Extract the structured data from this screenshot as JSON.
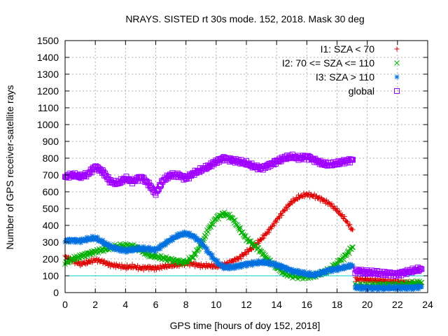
{
  "chart_data": {
    "type": "scatter",
    "title": "NRAYS. SISTED rt 30s mode. 152, 2018. Mask 30 deg",
    "xlabel": "GPS time [hours of doy 152, 2018]",
    "ylabel": "Number of GPS receiver-satellite rays",
    "xlim": [
      0,
      24
    ],
    "ylim": [
      0,
      1500
    ],
    "x_ticks": [
      "0",
      "2",
      "4",
      "6",
      "8",
      "10",
      "12",
      "14",
      "16",
      "18",
      "20",
      "22",
      "24"
    ],
    "y_ticks": [
      "0",
      "100",
      "200",
      "300",
      "400",
      "500",
      "600",
      "700",
      "800",
      "900",
      "1000",
      "1100",
      "1200",
      "1300",
      "1400",
      "1500"
    ],
    "grid": true,
    "legend_position": "top-right",
    "reference_line": {
      "y": 100,
      "color": "#00cccc"
    },
    "series": [
      {
        "name": "I1: SZA < 70",
        "marker": "+",
        "color": "#e00000",
        "x": [
          0,
          0.5,
          1,
          1.5,
          2,
          2.5,
          3,
          3.5,
          4,
          4.5,
          5,
          5.5,
          6,
          6.5,
          7,
          7.5,
          8,
          8.5,
          9,
          9.5,
          10,
          10.5,
          11,
          11.5,
          12,
          12.5,
          13,
          13.5,
          14,
          14.5,
          15,
          15.5,
          16,
          16.5,
          17,
          17.5,
          18,
          18.5,
          19,
          19.2,
          20,
          21,
          22,
          23,
          23.6
        ],
        "values": [
          215,
          190,
          170,
          180,
          195,
          185,
          165,
          160,
          150,
          155,
          145,
          150,
          145,
          155,
          160,
          165,
          175,
          170,
          160,
          160,
          155,
          165,
          185,
          205,
          240,
          275,
          320,
          370,
          430,
          490,
          540,
          570,
          585,
          575,
          555,
          530,
          490,
          440,
          375,
          80,
          75,
          70,
          65,
          55,
          50
        ]
      },
      {
        "name": "I2: 70 <= SZA <= 110",
        "marker": "x",
        "color": "#00b000",
        "x": [
          0,
          0.5,
          1,
          1.5,
          2,
          2.5,
          3,
          3.5,
          4,
          4.5,
          5,
          5.5,
          6,
          6.5,
          7,
          7.5,
          8,
          8.5,
          9,
          9.5,
          10,
          10.5,
          11,
          11.5,
          12,
          12.5,
          13,
          13.5,
          14,
          14.5,
          15,
          15.5,
          16,
          16.5,
          17,
          17.5,
          18,
          18.5,
          19,
          19.2,
          20,
          21,
          22,
          23,
          23.6
        ],
        "values": [
          175,
          200,
          215,
          230,
          245,
          255,
          265,
          275,
          280,
          275,
          255,
          225,
          215,
          205,
          195,
          185,
          180,
          215,
          285,
          380,
          445,
          470,
          450,
          385,
          320,
          285,
          240,
          190,
          150,
          115,
          100,
          95,
          95,
          100,
          115,
          135,
          175,
          215,
          270,
          40,
          40,
          45,
          45,
          55,
          60
        ]
      },
      {
        "name": "I3: SZA > 110",
        "marker": "*",
        "color": "#0070e0",
        "x": [
          0,
          0.5,
          1,
          1.5,
          2,
          2.5,
          3,
          3.5,
          4,
          4.5,
          5,
          5.5,
          6,
          6.5,
          7,
          7.5,
          8,
          8.5,
          9,
          9.5,
          10,
          10.5,
          11,
          11.5,
          12,
          12.5,
          13,
          13.5,
          14,
          14.5,
          15,
          15.5,
          16,
          16.5,
          17,
          17.5,
          18,
          18.5,
          19,
          19.2,
          20,
          21,
          22,
          23,
          23.6
        ],
        "values": [
          310,
          312,
          308,
          318,
          325,
          300,
          275,
          260,
          250,
          255,
          262,
          260,
          255,
          285,
          315,
          340,
          352,
          335,
          300,
          240,
          185,
          150,
          150,
          160,
          170,
          175,
          180,
          175,
          165,
          150,
          130,
          120,
          110,
          105,
          120,
          135,
          140,
          150,
          160,
          30,
          28,
          27,
          28,
          30,
          35
        ]
      },
      {
        "name": "global",
        "marker": "square",
        "color": "#a000ff",
        "x": [
          0,
          0.5,
          1,
          1.5,
          2,
          2.5,
          3,
          3.5,
          4,
          4.5,
          5,
          5.5,
          6,
          6.5,
          7,
          7.5,
          8,
          8.5,
          9,
          9.5,
          10,
          10.5,
          11,
          11.5,
          12,
          12.5,
          13,
          13.5,
          14,
          14.5,
          15,
          15.5,
          16,
          16.5,
          17,
          17.5,
          18,
          18.5,
          19,
          19.2,
          20,
          21,
          22,
          23,
          23.6
        ],
        "values": [
          690,
          700,
          690,
          705,
          750,
          720,
          660,
          650,
          680,
          660,
          690,
          650,
          590,
          670,
          700,
          700,
          680,
          710,
          730,
          750,
          780,
          800,
          790,
          780,
          770,
          750,
          740,
          760,
          780,
          800,
          810,
          800,
          810,
          790,
          770,
          760,
          770,
          780,
          790,
          130,
          120,
          115,
          110,
          130,
          140
        ]
      }
    ]
  }
}
